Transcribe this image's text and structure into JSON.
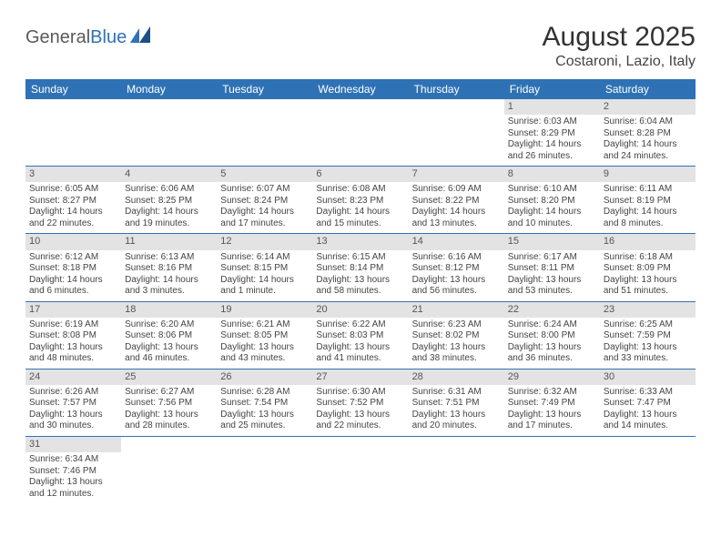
{
  "brand": {
    "part1": "General",
    "part2": "Blue"
  },
  "title": "August 2025",
  "location": "Costaroni, Lazio, Italy",
  "colors": {
    "header_bg": "#2e72b5",
    "daynum_bg": "#e3e3e3",
    "border": "#2e72b5",
    "text": "#444444"
  },
  "day_labels": [
    "Sunday",
    "Monday",
    "Tuesday",
    "Wednesday",
    "Thursday",
    "Friday",
    "Saturday"
  ],
  "weeks": [
    [
      null,
      null,
      null,
      null,
      null,
      {
        "n": "1",
        "sr": "Sunrise: 6:03 AM",
        "ss": "Sunset: 8:29 PM",
        "d1": "Daylight: 14 hours",
        "d2": "and 26 minutes."
      },
      {
        "n": "2",
        "sr": "Sunrise: 6:04 AM",
        "ss": "Sunset: 8:28 PM",
        "d1": "Daylight: 14 hours",
        "d2": "and 24 minutes."
      }
    ],
    [
      {
        "n": "3",
        "sr": "Sunrise: 6:05 AM",
        "ss": "Sunset: 8:27 PM",
        "d1": "Daylight: 14 hours",
        "d2": "and 22 minutes."
      },
      {
        "n": "4",
        "sr": "Sunrise: 6:06 AM",
        "ss": "Sunset: 8:25 PM",
        "d1": "Daylight: 14 hours",
        "d2": "and 19 minutes."
      },
      {
        "n": "5",
        "sr": "Sunrise: 6:07 AM",
        "ss": "Sunset: 8:24 PM",
        "d1": "Daylight: 14 hours",
        "d2": "and 17 minutes."
      },
      {
        "n": "6",
        "sr": "Sunrise: 6:08 AM",
        "ss": "Sunset: 8:23 PM",
        "d1": "Daylight: 14 hours",
        "d2": "and 15 minutes."
      },
      {
        "n": "7",
        "sr": "Sunrise: 6:09 AM",
        "ss": "Sunset: 8:22 PM",
        "d1": "Daylight: 14 hours",
        "d2": "and 13 minutes."
      },
      {
        "n": "8",
        "sr": "Sunrise: 6:10 AM",
        "ss": "Sunset: 8:20 PM",
        "d1": "Daylight: 14 hours",
        "d2": "and 10 minutes."
      },
      {
        "n": "9",
        "sr": "Sunrise: 6:11 AM",
        "ss": "Sunset: 8:19 PM",
        "d1": "Daylight: 14 hours",
        "d2": "and 8 minutes."
      }
    ],
    [
      {
        "n": "10",
        "sr": "Sunrise: 6:12 AM",
        "ss": "Sunset: 8:18 PM",
        "d1": "Daylight: 14 hours",
        "d2": "and 6 minutes."
      },
      {
        "n": "11",
        "sr": "Sunrise: 6:13 AM",
        "ss": "Sunset: 8:16 PM",
        "d1": "Daylight: 14 hours",
        "d2": "and 3 minutes."
      },
      {
        "n": "12",
        "sr": "Sunrise: 6:14 AM",
        "ss": "Sunset: 8:15 PM",
        "d1": "Daylight: 14 hours",
        "d2": "and 1 minute."
      },
      {
        "n": "13",
        "sr": "Sunrise: 6:15 AM",
        "ss": "Sunset: 8:14 PM",
        "d1": "Daylight: 13 hours",
        "d2": "and 58 minutes."
      },
      {
        "n": "14",
        "sr": "Sunrise: 6:16 AM",
        "ss": "Sunset: 8:12 PM",
        "d1": "Daylight: 13 hours",
        "d2": "and 56 minutes."
      },
      {
        "n": "15",
        "sr": "Sunrise: 6:17 AM",
        "ss": "Sunset: 8:11 PM",
        "d1": "Daylight: 13 hours",
        "d2": "and 53 minutes."
      },
      {
        "n": "16",
        "sr": "Sunrise: 6:18 AM",
        "ss": "Sunset: 8:09 PM",
        "d1": "Daylight: 13 hours",
        "d2": "and 51 minutes."
      }
    ],
    [
      {
        "n": "17",
        "sr": "Sunrise: 6:19 AM",
        "ss": "Sunset: 8:08 PM",
        "d1": "Daylight: 13 hours",
        "d2": "and 48 minutes."
      },
      {
        "n": "18",
        "sr": "Sunrise: 6:20 AM",
        "ss": "Sunset: 8:06 PM",
        "d1": "Daylight: 13 hours",
        "d2": "and 46 minutes."
      },
      {
        "n": "19",
        "sr": "Sunrise: 6:21 AM",
        "ss": "Sunset: 8:05 PM",
        "d1": "Daylight: 13 hours",
        "d2": "and 43 minutes."
      },
      {
        "n": "20",
        "sr": "Sunrise: 6:22 AM",
        "ss": "Sunset: 8:03 PM",
        "d1": "Daylight: 13 hours",
        "d2": "and 41 minutes."
      },
      {
        "n": "21",
        "sr": "Sunrise: 6:23 AM",
        "ss": "Sunset: 8:02 PM",
        "d1": "Daylight: 13 hours",
        "d2": "and 38 minutes."
      },
      {
        "n": "22",
        "sr": "Sunrise: 6:24 AM",
        "ss": "Sunset: 8:00 PM",
        "d1": "Daylight: 13 hours",
        "d2": "and 36 minutes."
      },
      {
        "n": "23",
        "sr": "Sunrise: 6:25 AM",
        "ss": "Sunset: 7:59 PM",
        "d1": "Daylight: 13 hours",
        "d2": "and 33 minutes."
      }
    ],
    [
      {
        "n": "24",
        "sr": "Sunrise: 6:26 AM",
        "ss": "Sunset: 7:57 PM",
        "d1": "Daylight: 13 hours",
        "d2": "and 30 minutes."
      },
      {
        "n": "25",
        "sr": "Sunrise: 6:27 AM",
        "ss": "Sunset: 7:56 PM",
        "d1": "Daylight: 13 hours",
        "d2": "and 28 minutes."
      },
      {
        "n": "26",
        "sr": "Sunrise: 6:28 AM",
        "ss": "Sunset: 7:54 PM",
        "d1": "Daylight: 13 hours",
        "d2": "and 25 minutes."
      },
      {
        "n": "27",
        "sr": "Sunrise: 6:30 AM",
        "ss": "Sunset: 7:52 PM",
        "d1": "Daylight: 13 hours",
        "d2": "and 22 minutes."
      },
      {
        "n": "28",
        "sr": "Sunrise: 6:31 AM",
        "ss": "Sunset: 7:51 PM",
        "d1": "Daylight: 13 hours",
        "d2": "and 20 minutes."
      },
      {
        "n": "29",
        "sr": "Sunrise: 6:32 AM",
        "ss": "Sunset: 7:49 PM",
        "d1": "Daylight: 13 hours",
        "d2": "and 17 minutes."
      },
      {
        "n": "30",
        "sr": "Sunrise: 6:33 AM",
        "ss": "Sunset: 7:47 PM",
        "d1": "Daylight: 13 hours",
        "d2": "and 14 minutes."
      }
    ],
    [
      {
        "n": "31",
        "sr": "Sunrise: 6:34 AM",
        "ss": "Sunset: 7:46 PM",
        "d1": "Daylight: 13 hours",
        "d2": "and 12 minutes."
      },
      null,
      null,
      null,
      null,
      null,
      null
    ]
  ]
}
